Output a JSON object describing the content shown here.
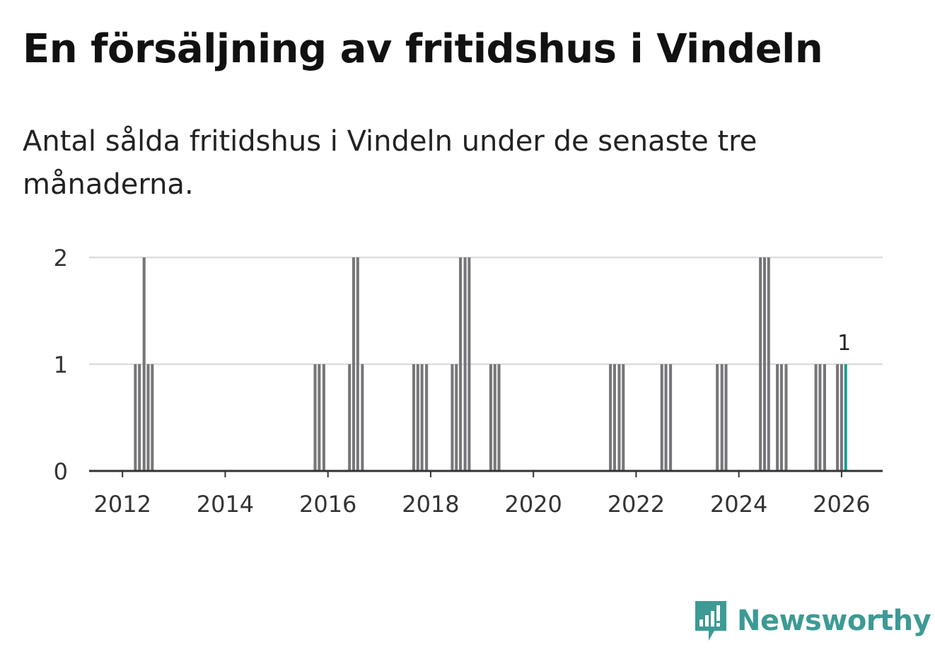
{
  "title": "En försäljning av fritidshus i Vindeln",
  "subtitle": "Antal sålda fritidshus i Vindeln under de senaste tre månaderna.",
  "brand": {
    "name": "Newsworthy",
    "color": "#3d9a95"
  },
  "chart_data": {
    "type": "bar",
    "title": "En försäljning av fritidshus i Vindeln",
    "subtitle": "Antal sålda fritidshus i Vindeln under de senaste tre månaderna.",
    "xlabel": "",
    "ylabel": "",
    "x_unit": "year",
    "xlim": [
      2011.35,
      2026.8
    ],
    "ylim": [
      0,
      2
    ],
    "x_ticks": [
      "2012",
      "2014",
      "2016",
      "2018",
      "2020",
      "2022",
      "2024",
      "2026"
    ],
    "y_ticks": [
      "0",
      "1",
      "2"
    ],
    "grid": true,
    "bar_color": "#76767a",
    "highlight_color": "#1a9e8f",
    "highlight_label": "1",
    "series": [
      {
        "name": "Antal sålda fritidshus",
        "x": [
          2012.25,
          2012.33,
          2012.42,
          2012.5,
          2012.58,
          2015.75,
          2015.83,
          2015.92,
          2016.42,
          2016.5,
          2016.58,
          2016.67,
          2017.67,
          2017.75,
          2017.83,
          2017.92,
          2018.42,
          2018.5,
          2018.58,
          2018.67,
          2018.75,
          2019.17,
          2019.25,
          2019.33,
          2021.5,
          2021.58,
          2021.67,
          2021.75,
          2022.5,
          2022.58,
          2022.67,
          2023.58,
          2023.67,
          2023.75,
          2024.42,
          2024.5,
          2024.58,
          2024.75,
          2024.83,
          2024.92,
          2025.5,
          2025.58,
          2025.67,
          2025.92,
          2026.0,
          2026.08
        ],
        "values": [
          1,
          1,
          2,
          1,
          1,
          1,
          1,
          1,
          1,
          2,
          2,
          1,
          1,
          1,
          1,
          1,
          1,
          1,
          2,
          2,
          2,
          1,
          1,
          1,
          1,
          1,
          1,
          1,
          1,
          1,
          1,
          1,
          1,
          1,
          2,
          2,
          2,
          1,
          1,
          1,
          1,
          1,
          1,
          1,
          1,
          1
        ]
      }
    ]
  }
}
